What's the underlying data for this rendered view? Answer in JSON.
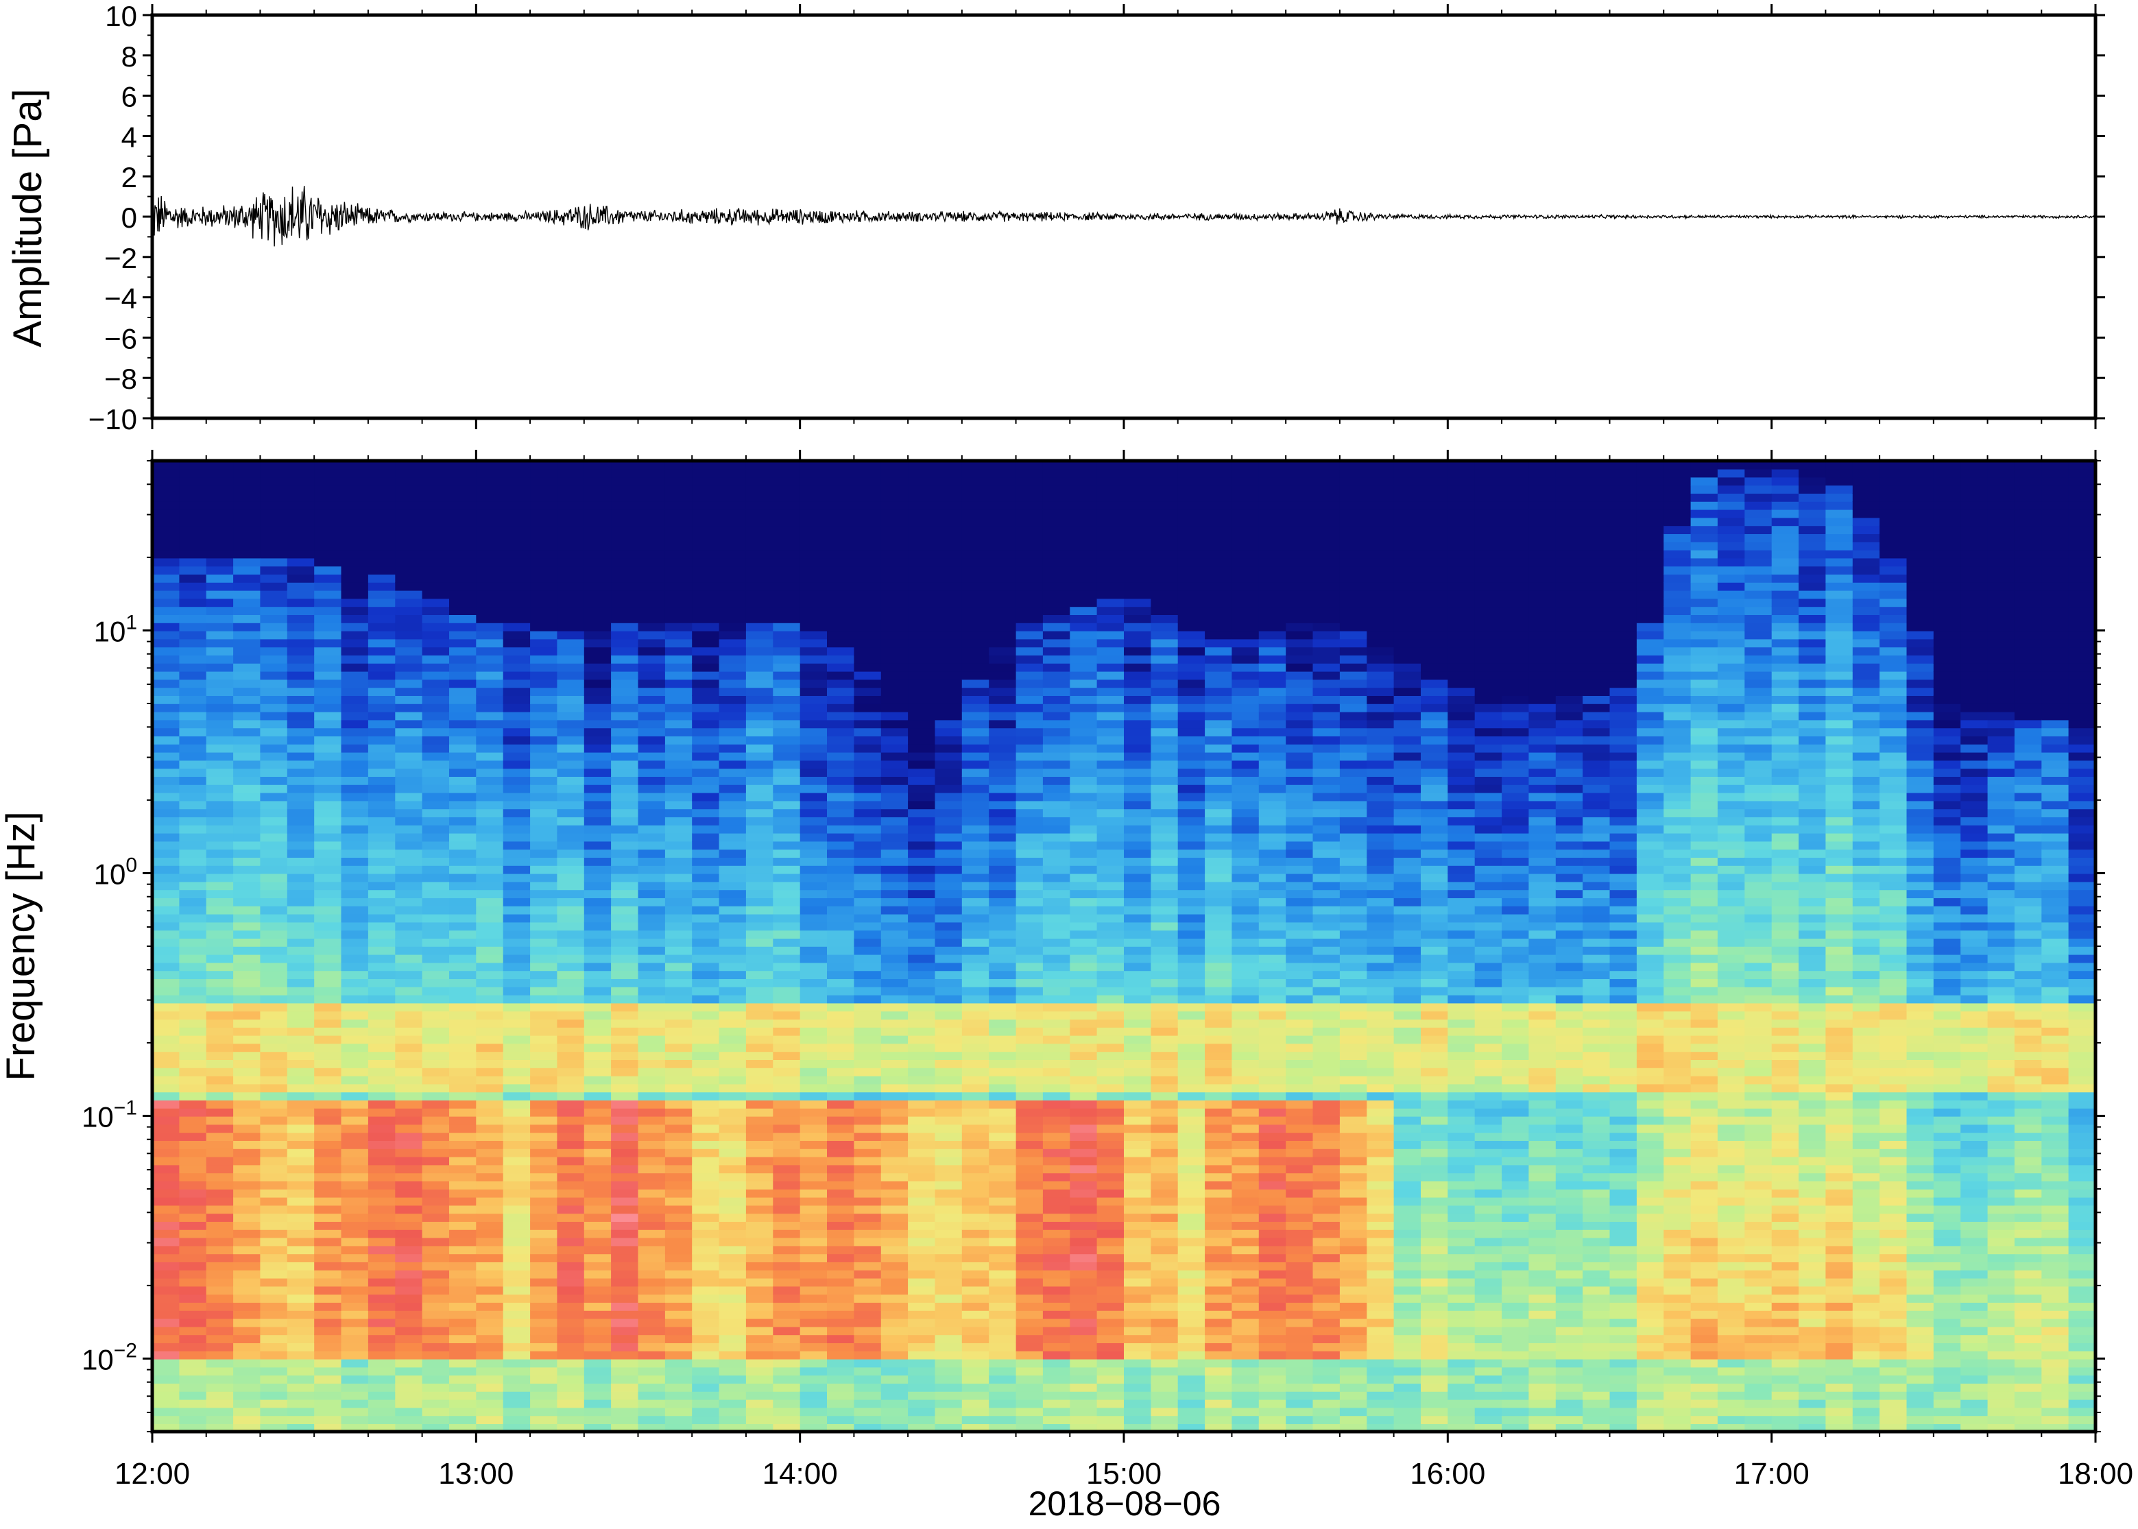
{
  "chart_data": [
    {
      "type": "line",
      "ylabel": "Amplitude [Pa]",
      "ylim": [
        -10,
        10
      ],
      "yticks": [
        10,
        8,
        6,
        4,
        2,
        0,
        -2,
        -4,
        -6,
        -8,
        -10
      ],
      "ytick_labels": [
        "10",
        "8",
        "6",
        "4",
        "2",
        "0",
        "−2",
        "−4",
        "−6",
        "−8",
        "−10"
      ],
      "xlim": [
        "12:00",
        "18:00"
      ],
      "grid": false,
      "series": [
        {
          "color": "#000000",
          "envelope_x_hours": [
            12.0,
            12.1,
            12.25,
            12.4,
            12.45,
            12.5,
            12.65,
            12.8,
            13.0,
            13.2,
            13.35,
            13.5,
            13.8,
            14.0,
            14.3,
            14.6,
            15.0,
            15.3,
            15.6,
            15.65,
            15.8,
            16.0,
            16.5,
            17.0,
            17.5,
            18.0
          ],
          "envelope_amplitude_pa": [
            1.6,
            0.6,
            0.7,
            1.9,
            2.1,
            1.5,
            0.6,
            0.3,
            0.25,
            0.3,
            0.8,
            0.35,
            0.5,
            0.45,
            0.3,
            0.3,
            0.2,
            0.2,
            0.2,
            0.5,
            0.15,
            0.12,
            0.1,
            0.08,
            0.08,
            0.08
          ]
        }
      ]
    },
    {
      "type": "heatmap",
      "ylabel": "Frequency [Hz]",
      "xlabel": "2018−08−06",
      "xticks": [
        "12:00",
        "13:00",
        "14:00",
        "15:00",
        "16:00",
        "17:00",
        "18:00"
      ],
      "x_hours": [
        12,
        13,
        14,
        15,
        16,
        17,
        18
      ],
      "y_scale": "log",
      "ylim": [
        0.005,
        50
      ],
      "yticks": [
        0.01,
        0.1,
        1,
        10
      ],
      "ytick_labels": [
        {
          "base": "10",
          "exp": "−2"
        },
        {
          "base": "10",
          "exp": "−1"
        },
        {
          "base": "10",
          "exp": "0"
        },
        {
          "base": "10",
          "exp": "1"
        }
      ],
      "colormap": "rainbow",
      "colormap_stops": [
        "#0b0a75",
        "#1233c8",
        "#1f7fe6",
        "#3fb3ea",
        "#5fd7e2",
        "#8be8b8",
        "#c8f08c",
        "#f2e87a",
        "#fbc25e",
        "#f98c48",
        "#ef5a54",
        "#ff9fa8"
      ],
      "cutoff_profile": {
        "hours": [
          12.0,
          12.2,
          12.4,
          12.7,
          13.0,
          13.3,
          13.6,
          14.0,
          14.3,
          14.4,
          14.5,
          14.7,
          15.0,
          15.3,
          15.6,
          16.0,
          16.3,
          16.6,
          16.8,
          17.15,
          17.5,
          18.0
        ],
        "upper_freq_hz": [
          20,
          20,
          20,
          17,
          11,
          10,
          11,
          11,
          5,
          3,
          5,
          11,
          14,
          9,
          11,
          6,
          5,
          6,
          45,
          45,
          5,
          4
        ]
      },
      "bright_band_hz": [
        0.01,
        0.12
      ],
      "bright_band_hours": [
        12.0,
        15.8
      ]
    }
  ]
}
